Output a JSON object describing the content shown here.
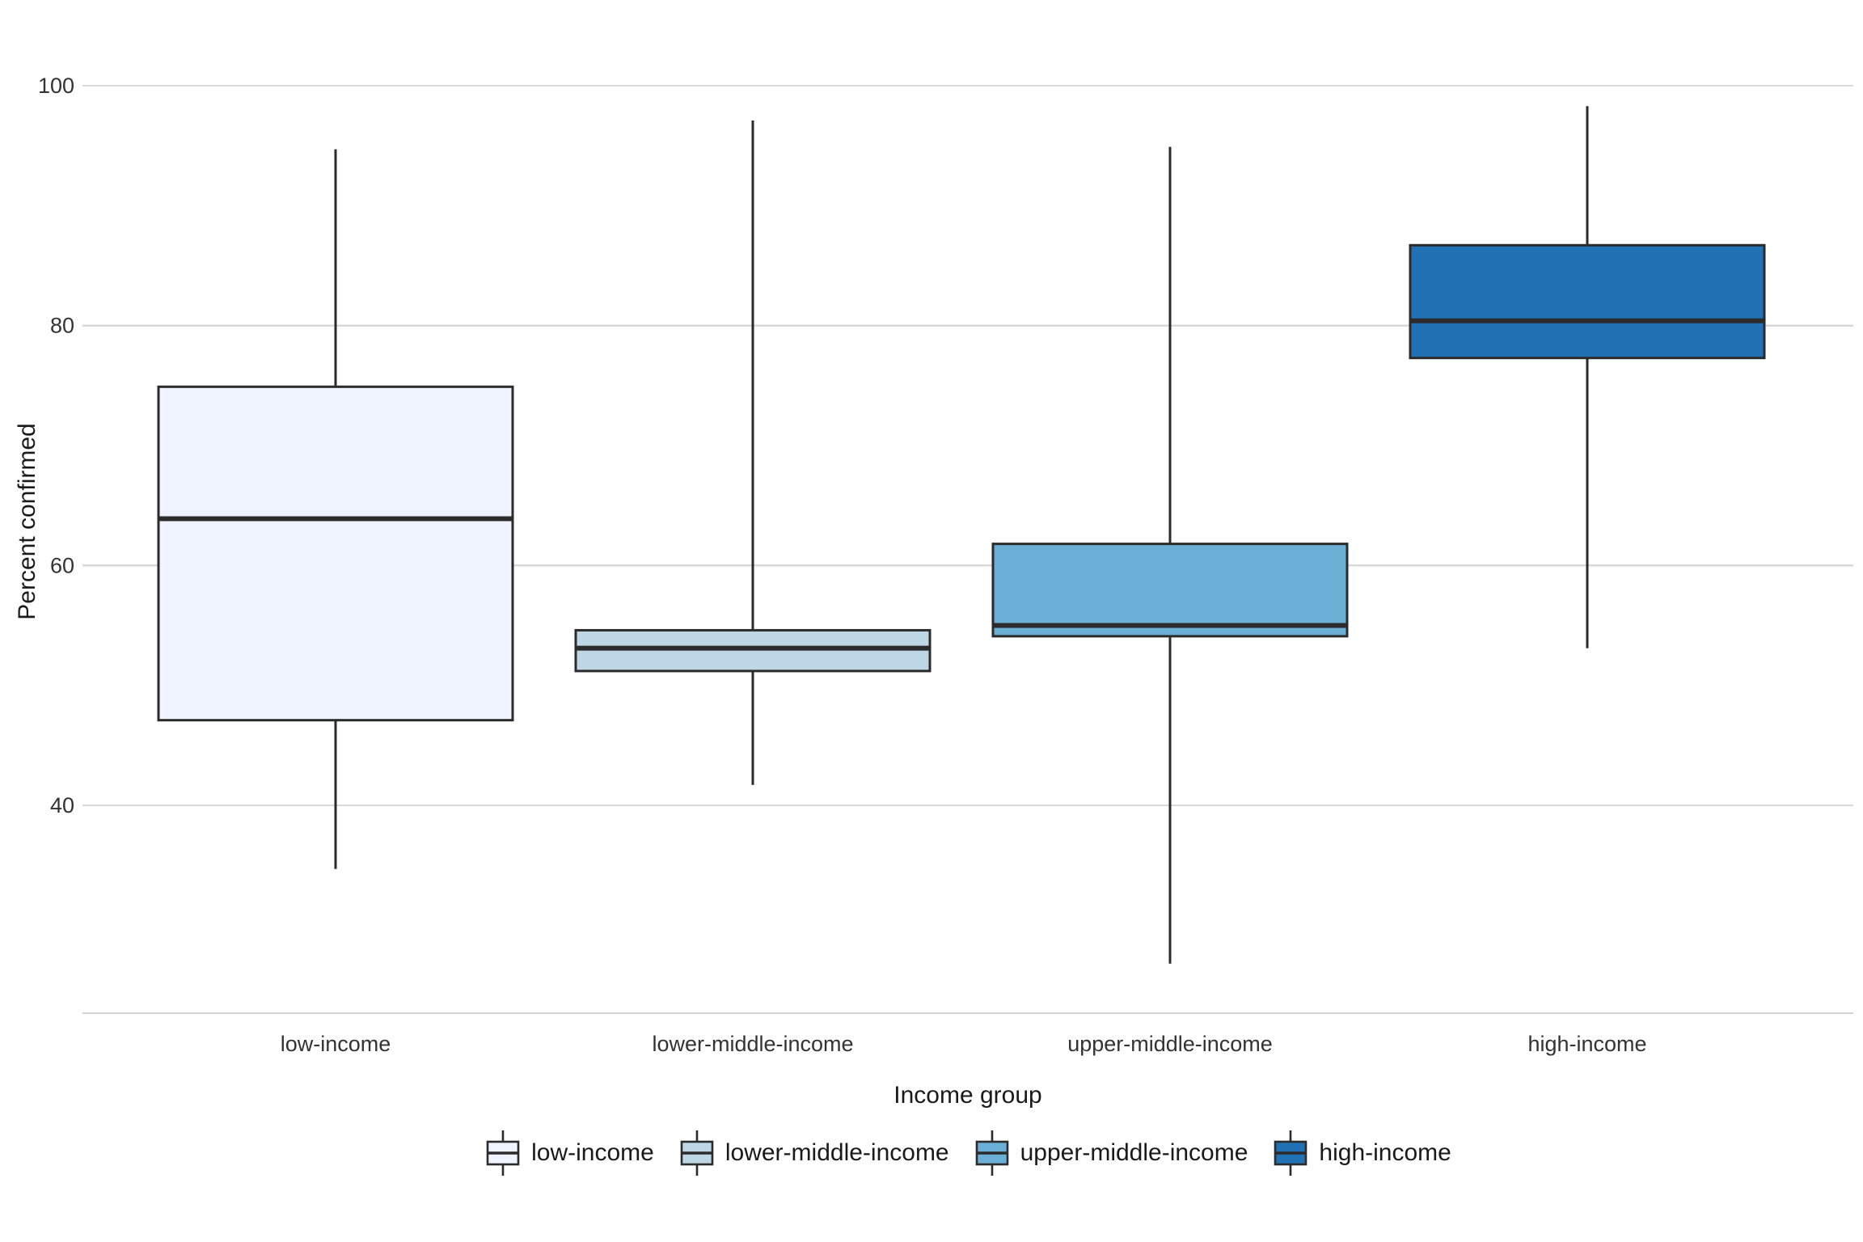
{
  "chart_data": {
    "type": "boxplot",
    "title": "",
    "xlabel": "Income group",
    "ylabel": "Percent confirmed",
    "categories": [
      "low-income",
      "lower-middle-income",
      "upper-middle-income",
      "high-income"
    ],
    "series": [
      {
        "name": "low-income",
        "color": "#eff3ff",
        "whisker_low": 34.7,
        "q1": 47.1,
        "median": 63.9,
        "q3": 74.9,
        "whisker_high": 94.7
      },
      {
        "name": "lower-middle-income",
        "color": "#bdd7e7",
        "whisker_low": 41.7,
        "q1": 51.2,
        "median": 53.1,
        "q3": 54.6,
        "whisker_high": 97.1
      },
      {
        "name": "upper-middle-income",
        "color": "#6baed6",
        "whisker_low": 26.8,
        "q1": 54.1,
        "median": 55.0,
        "q3": 61.8,
        "whisker_high": 94.9
      },
      {
        "name": "high-income",
        "color": "#2171b5",
        "whisker_low": 53.1,
        "q1": 77.3,
        "median": 80.4,
        "q3": 86.7,
        "whisker_high": 98.3
      }
    ],
    "y_ticks": [
      40,
      60,
      80,
      100
    ],
    "ylim": [
      22.5,
      107.2
    ],
    "grid": "horizontal",
    "legend_position": "bottom",
    "colors": {
      "box_stroke": "#2b2b2b",
      "gridline": "#d9d9d9",
      "axis_line": "#d2d2d2",
      "tick_label": "#333333",
      "title_text": "#1a1a1a",
      "background": "#ffffff"
    }
  }
}
